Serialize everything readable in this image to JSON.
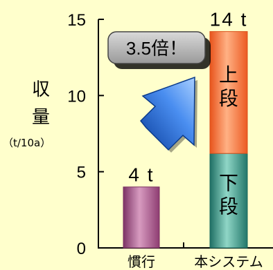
{
  "chart_data": {
    "type": "bar",
    "stacked": true,
    "categories": [
      "慣行",
      "本システム"
    ],
    "series": [
      {
        "values": [
          4,
          6.2
        ],
        "labels": [
          "",
          "下\n段"
        ]
      },
      {
        "values": [
          0,
          8.0
        ],
        "labels": [
          "",
          "上\n段"
        ]
      }
    ],
    "totals": [
      4,
      14
    ],
    "total_labels": [
      "4 t",
      "14 t"
    ],
    "ylabel": "収\n量",
    "yunit": "（t/10a）",
    "ylim": [
      0,
      15
    ],
    "yticks": [
      "0",
      "5",
      "10",
      "15"
    ],
    "ytick_values": [
      0,
      5,
      10,
      15
    ],
    "annotation": "3.5倍！",
    "grid": false,
    "legend": "none",
    "colors": {
      "background": "#ffffcc",
      "conventional_bar": "#a44f84",
      "lower_segment": "#2e8b7e",
      "upper_segment": "#f26a2c",
      "arrow": "#1e60c8",
      "callout_fill": "#b8b8b8"
    }
  }
}
